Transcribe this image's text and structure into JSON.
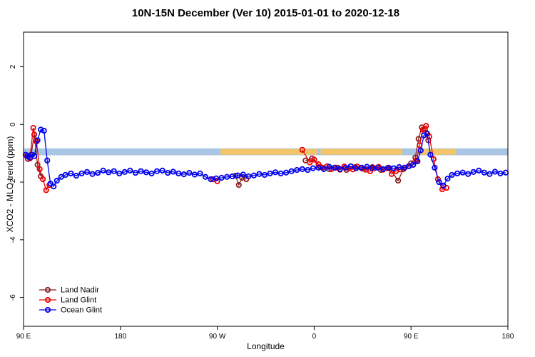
{
  "title": "10N-15N December (Ver 10)   2015-01-01 to 2020-12-18",
  "chart_data": {
    "type": "scatter",
    "title": "10N-15N December (Ver 10)   2015-01-01 to 2020-12-18",
    "xlabel": "Longitude",
    "ylabel": "XCO2 - MLO trend (ppm)",
    "xlim": [
      90,
      540
    ],
    "ylim": [
      -7,
      3.2
    ],
    "grid": false,
    "xticks": [
      {
        "value": 90,
        "label": "90 E"
      },
      {
        "value": 180,
        "label": "180"
      },
      {
        "value": 270,
        "label": "90 W"
      },
      {
        "value": 360,
        "label": "0"
      },
      {
        "value": 450,
        "label": "90 E"
      },
      {
        "value": 540,
        "label": "180"
      }
    ],
    "yticks": [
      {
        "value": 2,
        "label": "2"
      },
      {
        "value": 0,
        "label": "0"
      },
      {
        "value": -2,
        "label": "-2"
      },
      {
        "value": -4,
        "label": "-4"
      },
      {
        "value": -6,
        "label": "-6"
      }
    ],
    "bands": [
      {
        "name": "reference-band-blue",
        "color": "#a9c5e4",
        "x0": 90,
        "x1": 540,
        "y0": -0.83,
        "y1": -1.07
      },
      {
        "name": "reference-band-yellow-1",
        "color": "#f2c566",
        "x0": 273,
        "x1": 363,
        "y0": -0.85,
        "y1": -1.05
      },
      {
        "name": "reference-band-yellow-2",
        "color": "#f2c566",
        "x0": 366,
        "x1": 442,
        "y0": -0.85,
        "y1": -1.05
      },
      {
        "name": "reference-band-yellow-3",
        "color": "#f2c566",
        "x0": 458,
        "x1": 492,
        "y0": -0.85,
        "y1": -1.05
      }
    ],
    "legend": {
      "position": "bottom-left",
      "entries": [
        "Land Nadir",
        "Land Glint",
        "Ocean Glint"
      ]
    },
    "series": [
      {
        "name": "Land Nadir",
        "color": "#8b2020",
        "points": [
          [
            94,
            -1.2
          ],
          [
            97,
            -1.05
          ],
          [
            100,
            -0.35
          ],
          [
            103,
            -1.4
          ],
          [
            106,
            -1.8
          ],
          [
            287,
            -1.78
          ],
          [
            290,
            -2.1
          ],
          [
            293,
            -1.85
          ],
          [
            297,
            -1.9
          ],
          [
            352,
            -1.25
          ],
          [
            358,
            -1.18
          ],
          [
            366,
            -1.48
          ],
          [
            374,
            -1.55
          ],
          [
            382,
            -1.5
          ],
          [
            390,
            -1.58
          ],
          [
            398,
            -1.48
          ],
          [
            406,
            -1.54
          ],
          [
            414,
            -1.48
          ],
          [
            422,
            -1.58
          ],
          [
            430,
            -1.52
          ],
          [
            438,
            -1.95
          ],
          [
            443,
            -1.55
          ],
          [
            450,
            -1.35
          ],
          [
            454,
            -1.15
          ],
          [
            457,
            -0.5
          ],
          [
            460,
            -0.1
          ],
          [
            463,
            -0.15
          ],
          [
            466,
            -0.55
          ]
        ]
      },
      {
        "name": "Land Glint",
        "color": "#ee0000",
        "points": [
          [
            93,
            -1.1
          ],
          [
            96,
            -1.18
          ],
          [
            99,
            -0.12
          ],
          [
            102,
            -0.6
          ],
          [
            105,
            -1.55
          ],
          [
            108,
            -1.9
          ],
          [
            111,
            -2.28
          ],
          [
            114,
            -2.1
          ],
          [
            266,
            -1.9
          ],
          [
            270,
            -1.97
          ],
          [
            349,
            -0.88
          ],
          [
            356,
            -1.32
          ],
          [
            360,
            -1.22
          ],
          [
            364,
            -1.38
          ],
          [
            368,
            -1.5
          ],
          [
            372,
            -1.45
          ],
          [
            376,
            -1.55
          ],
          [
            380,
            -1.5
          ],
          [
            384,
            -1.57
          ],
          [
            388,
            -1.46
          ],
          [
            392,
            -1.52
          ],
          [
            396,
            -1.56
          ],
          [
            400,
            -1.46
          ],
          [
            404,
            -1.52
          ],
          [
            408,
            -1.57
          ],
          [
            412,
            -1.62
          ],
          [
            416,
            -1.52
          ],
          [
            420,
            -1.47
          ],
          [
            424,
            -1.57
          ],
          [
            428,
            -1.52
          ],
          [
            432,
            -1.72
          ],
          [
            436,
            -1.62
          ],
          [
            440,
            -1.56
          ],
          [
            444,
            -1.5
          ],
          [
            448,
            -1.44
          ],
          [
            452,
            -1.4
          ],
          [
            455,
            -1.25
          ],
          [
            458,
            -0.72
          ],
          [
            461,
            -0.18
          ],
          [
            464,
            -0.05
          ],
          [
            467,
            -0.42
          ],
          [
            471,
            -1.2
          ],
          [
            475,
            -1.9
          ],
          [
            479,
            -2.25
          ],
          [
            483,
            -2.2
          ]
        ]
      },
      {
        "name": "Ocean Glint",
        "color": "#0000ee",
        "points": [
          [
            92,
            -1.05
          ],
          [
            94,
            -1.1
          ],
          [
            96,
            -1.15
          ],
          [
            98,
            -1.05
          ],
          [
            100,
            -1.1
          ],
          [
            103,
            -0.55
          ],
          [
            106,
            -0.18
          ],
          [
            109,
            -0.22
          ],
          [
            112,
            -1.25
          ],
          [
            115,
            -2.05
          ],
          [
            118,
            -2.15
          ],
          [
            121,
            -1.95
          ],
          [
            125,
            -1.82
          ],
          [
            129,
            -1.75
          ],
          [
            134,
            -1.7
          ],
          [
            139,
            -1.78
          ],
          [
            144,
            -1.7
          ],
          [
            149,
            -1.65
          ],
          [
            154,
            -1.72
          ],
          [
            159,
            -1.68
          ],
          [
            164,
            -1.6
          ],
          [
            169,
            -1.66
          ],
          [
            174,
            -1.62
          ],
          [
            179,
            -1.7
          ],
          [
            184,
            -1.65
          ],
          [
            189,
            -1.6
          ],
          [
            194,
            -1.68
          ],
          [
            199,
            -1.62
          ],
          [
            204,
            -1.66
          ],
          [
            209,
            -1.7
          ],
          [
            214,
            -1.62
          ],
          [
            219,
            -1.6
          ],
          [
            224,
            -1.68
          ],
          [
            229,
            -1.64
          ],
          [
            234,
            -1.7
          ],
          [
            239,
            -1.73
          ],
          [
            244,
            -1.68
          ],
          [
            249,
            -1.74
          ],
          [
            254,
            -1.7
          ],
          [
            259,
            -1.82
          ],
          [
            264,
            -1.9
          ],
          [
            269,
            -1.87
          ],
          [
            274,
            -1.85
          ],
          [
            279,
            -1.82
          ],
          [
            284,
            -1.8
          ],
          [
            289,
            -1.77
          ],
          [
            294,
            -1.74
          ],
          [
            299,
            -1.8
          ],
          [
            304,
            -1.77
          ],
          [
            309,
            -1.72
          ],
          [
            314,
            -1.75
          ],
          [
            319,
            -1.7
          ],
          [
            324,
            -1.66
          ],
          [
            329,
            -1.7
          ],
          [
            334,
            -1.67
          ],
          [
            339,
            -1.62
          ],
          [
            344,
            -1.58
          ],
          [
            349,
            -1.55
          ],
          [
            354,
            -1.58
          ],
          [
            359,
            -1.52
          ],
          [
            364,
            -1.5
          ],
          [
            369,
            -1.55
          ],
          [
            374,
            -1.47
          ],
          [
            379,
            -1.5
          ],
          [
            384,
            -1.55
          ],
          [
            389,
            -1.5
          ],
          [
            394,
            -1.45
          ],
          [
            399,
            -1.52
          ],
          [
            404,
            -1.5
          ],
          [
            409,
            -1.47
          ],
          [
            414,
            -1.52
          ],
          [
            419,
            -1.5
          ],
          [
            424,
            -1.55
          ],
          [
            429,
            -1.5
          ],
          [
            434,
            -1.52
          ],
          [
            439,
            -1.48
          ],
          [
            444,
            -1.5
          ],
          [
            448,
            -1.45
          ],
          [
            452,
            -1.4
          ],
          [
            456,
            -1.28
          ],
          [
            459,
            -0.9
          ],
          [
            462,
            -0.38
          ],
          [
            465,
            -0.32
          ],
          [
            468,
            -1.05
          ],
          [
            472,
            -1.5
          ],
          [
            476,
            -2.0
          ],
          [
            480,
            -2.12
          ],
          [
            484,
            -1.88
          ],
          [
            488,
            -1.75
          ],
          [
            493,
            -1.7
          ],
          [
            498,
            -1.67
          ],
          [
            503,
            -1.72
          ],
          [
            508,
            -1.65
          ],
          [
            513,
            -1.6
          ],
          [
            518,
            -1.67
          ],
          [
            523,
            -1.72
          ],
          [
            528,
            -1.64
          ],
          [
            533,
            -1.7
          ],
          [
            538,
            -1.67
          ]
        ]
      }
    ]
  }
}
